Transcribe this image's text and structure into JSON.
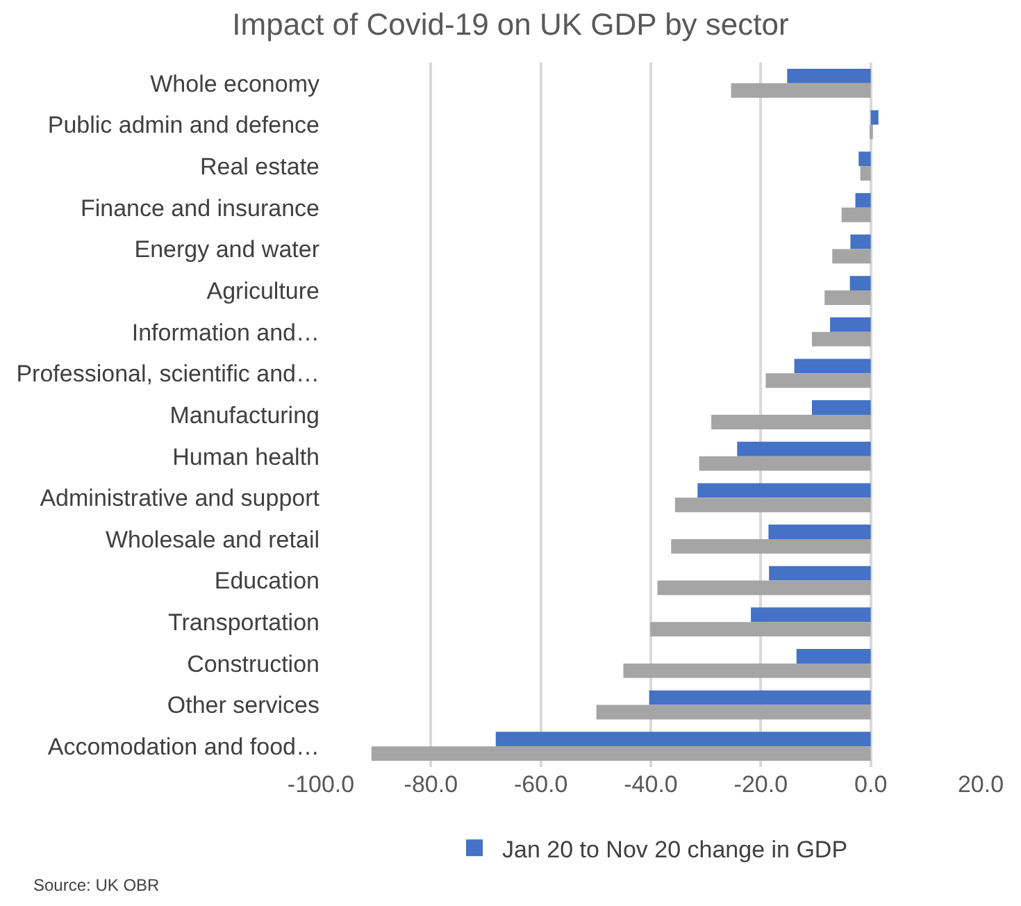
{
  "chart_data": {
    "type": "bar",
    "orientation": "horizontal",
    "title": "Impact of Covid-19 on UK GDP by sector",
    "categories": [
      "Whole economy",
      "Public admin and defence",
      "Real estate",
      "Finance and insurance",
      "Energy and water",
      "Agriculture",
      "Information and…",
      "Professional, scientific and…",
      "Manufacturing",
      "Human health",
      "Administrative and support",
      "Wholesale and retail",
      "Education",
      "Transportation",
      "Construction",
      "Other services",
      "Accomodation and food…"
    ],
    "series": [
      {
        "name": "Jan 20 to Nov 20 change in GDP",
        "color": "#4472c4",
        "values": [
          -15.2,
          1.4,
          -2.2,
          -2.8,
          -3.7,
          -3.8,
          -7.4,
          -13.9,
          -10.7,
          -24.3,
          -31.5,
          -18.6,
          -18.5,
          -21.8,
          -13.5,
          -40.3,
          -68.2
        ]
      },
      {
        "color": "#a5a5a5",
        "values": [
          -25.4,
          0.4,
          -1.9,
          -5.3,
          -7.0,
          -8.4,
          -10.7,
          -19.1,
          -29.0,
          -31.2,
          -35.6,
          -36.3,
          -38.8,
          -40.1,
          -45.0,
          -49.9,
          -90.8
        ]
      }
    ],
    "xlim": [
      -100,
      20
    ],
    "xticks": [
      {
        "value": -100,
        "label": "-100.0"
      },
      {
        "value": -80,
        "label": "-80.0"
      },
      {
        "value": -60,
        "label": "-60.0"
      },
      {
        "value": -40,
        "label": "-40.0"
      },
      {
        "value": -20,
        "label": "-20.0"
      },
      {
        "value": 0,
        "label": "0.0"
      },
      {
        "value": 20,
        "label": "20.0"
      }
    ],
    "grid": "x",
    "legend": "bottom",
    "annotations": [
      "Source: UK OBR"
    ]
  }
}
